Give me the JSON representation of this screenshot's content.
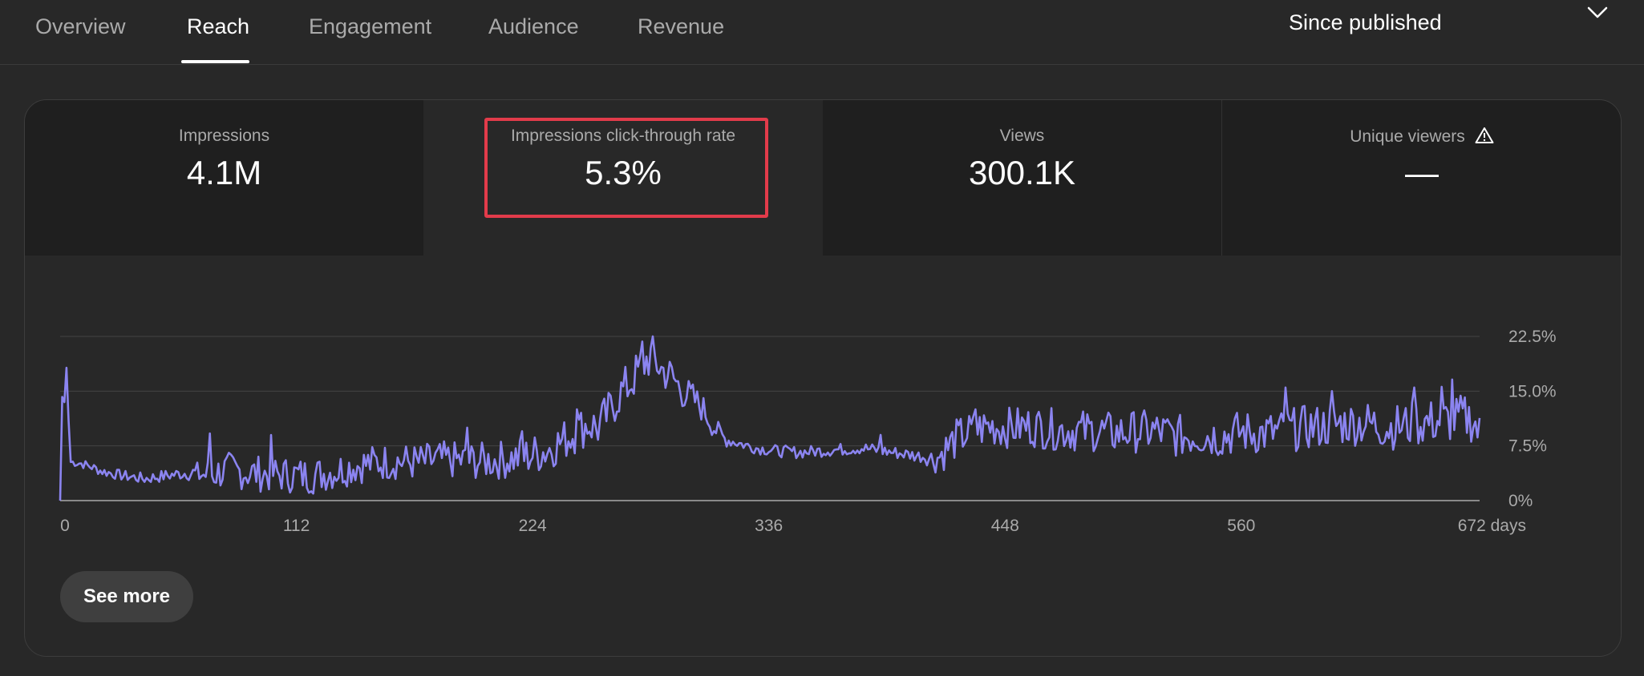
{
  "tabs": [
    {
      "label": "Overview",
      "active": false
    },
    {
      "label": "Reach",
      "active": true
    },
    {
      "label": "Engagement",
      "active": false
    },
    {
      "label": "Audience",
      "active": false
    },
    {
      "label": "Revenue",
      "active": false
    }
  ],
  "date_range": {
    "value": "Since published",
    "icon": "chevron-down-icon"
  },
  "metrics": [
    {
      "label": "Impressions",
      "value": "4.1M"
    },
    {
      "label": "Impressions click-through rate",
      "value": "5.3%",
      "highlighted": true
    },
    {
      "label": "Views",
      "value": "300.1K"
    },
    {
      "label": "Unique viewers",
      "value": "—",
      "icon": "warning-icon"
    }
  ],
  "see_more_label": "See more",
  "colors": {
    "background": "#282828",
    "line": "#8b84f0",
    "highlight": "#e23b4a",
    "active_tab": "#ffffff",
    "inactive_tab": "#aaaaaa"
  },
  "chart_data": {
    "type": "line",
    "x_unit_label": "days",
    "x_ticks": [
      "0",
      "112",
      "224",
      "336",
      "448",
      "560",
      "672 days"
    ],
    "x_tick_values": [
      0,
      112,
      224,
      336,
      448,
      560,
      672
    ],
    "y_ticks": [
      "0%",
      "7.5%",
      "15.0%",
      "22.5%"
    ],
    "y_tick_values": [
      0,
      7.5,
      15,
      22.5
    ],
    "xlim": [
      0,
      673
    ],
    "ylim": [
      0,
      22.5
    ],
    "grid": true,
    "series": [
      {
        "anchors": [
          [
            0,
            0
          ],
          [
            1,
            14.2
          ],
          [
            2,
            13.5
          ],
          [
            3,
            18.2
          ],
          [
            4,
            11
          ],
          [
            5,
            5.3
          ],
          [
            10,
            5.1
          ],
          [
            15,
            4.6
          ],
          [
            20,
            4.0
          ],
          [
            30,
            3.4
          ],
          [
            40,
            3.0
          ],
          [
            50,
            3.4
          ],
          [
            60,
            3.8
          ],
          [
            70,
            3.5
          ],
          [
            80,
            4.2
          ],
          [
            90,
            3.8
          ],
          [
            100,
            3.6
          ],
          [
            110,
            3.5
          ],
          [
            120,
            3.4
          ],
          [
            130,
            4.0
          ],
          [
            140,
            4.8
          ],
          [
            150,
            5.2
          ],
          [
            160,
            5.4
          ],
          [
            170,
            5.2
          ],
          [
            180,
            5.6
          ],
          [
            190,
            5.5
          ],
          [
            200,
            5.4
          ],
          [
            210,
            5.6
          ],
          [
            220,
            6.0
          ],
          [
            230,
            6.8
          ],
          [
            240,
            8.5
          ],
          [
            250,
            10.5
          ],
          [
            255,
            10.0
          ],
          [
            260,
            12.0
          ],
          [
            265,
            14.5
          ],
          [
            270,
            16.0
          ],
          [
            275,
            18.0
          ],
          [
            280,
            20.0
          ],
          [
            285,
            18.0
          ],
          [
            290,
            17.0
          ],
          [
            295,
            15.0
          ],
          [
            300,
            14.0
          ],
          [
            305,
            12.5
          ],
          [
            310,
            10.0
          ],
          [
            315,
            8.5
          ],
          [
            320,
            8.0
          ],
          [
            330,
            7.2
          ],
          [
            340,
            6.8
          ],
          [
            350,
            6.6
          ],
          [
            360,
            6.8
          ],
          [
            370,
            7.0
          ],
          [
            380,
            7.2
          ],
          [
            390,
            6.8
          ],
          [
            400,
            6.4
          ],
          [
            410,
            6.0
          ],
          [
            415,
            5.6
          ],
          [
            420,
            7.0
          ],
          [
            425,
            8.5
          ],
          [
            430,
            9.2
          ],
          [
            440,
            10.2
          ],
          [
            450,
            10.0
          ],
          [
            460,
            10.2
          ],
          [
            470,
            9.8
          ],
          [
            480,
            9.6
          ],
          [
            490,
            9.6
          ],
          [
            500,
            9.2
          ],
          [
            510,
            9.5
          ],
          [
            520,
            9.5
          ],
          [
            530,
            8.8
          ],
          [
            540,
            9.0
          ],
          [
            550,
            8.8
          ],
          [
            560,
            9.4
          ],
          [
            570,
            9.2
          ],
          [
            580,
            9.5
          ],
          [
            590,
            10.0
          ],
          [
            600,
            10.2
          ],
          [
            610,
            10.6
          ],
          [
            620,
            10.6
          ],
          [
            630,
            10.0
          ],
          [
            640,
            10.4
          ],
          [
            650,
            10.8
          ],
          [
            660,
            11.0
          ],
          [
            665,
            11.5
          ],
          [
            670,
            11.0
          ],
          [
            673,
            9.0
          ]
        ],
        "noise_amplitude": [
          [
            0,
            0
          ],
          [
            4,
            0
          ],
          [
            5,
            0.6
          ],
          [
            20,
            0.7
          ],
          [
            60,
            0.9
          ],
          [
            70,
            2.5
          ],
          [
            200,
            2.6
          ],
          [
            240,
            3.0
          ],
          [
            280,
            3.2
          ],
          [
            305,
            2.0
          ],
          [
            320,
            0.8
          ],
          [
            410,
            0.9
          ],
          [
            420,
            2.8
          ],
          [
            673,
            3.2
          ]
        ],
        "spikes": [
          [
            71,
            9.2
          ],
          [
            100,
            9.0
          ],
          [
            193,
            10.0
          ],
          [
            219,
            9.5
          ],
          [
            245,
            12.5
          ],
          [
            276,
            21.8
          ],
          [
            280,
            20.9
          ],
          [
            389,
            9.0
          ],
          [
            434,
            12.5
          ],
          [
            581,
            15.5
          ],
          [
            603,
            15.0
          ],
          [
            642,
            15.5
          ],
          [
            655,
            15.6
          ],
          [
            660,
            16.6
          ]
        ]
      }
    ]
  }
}
